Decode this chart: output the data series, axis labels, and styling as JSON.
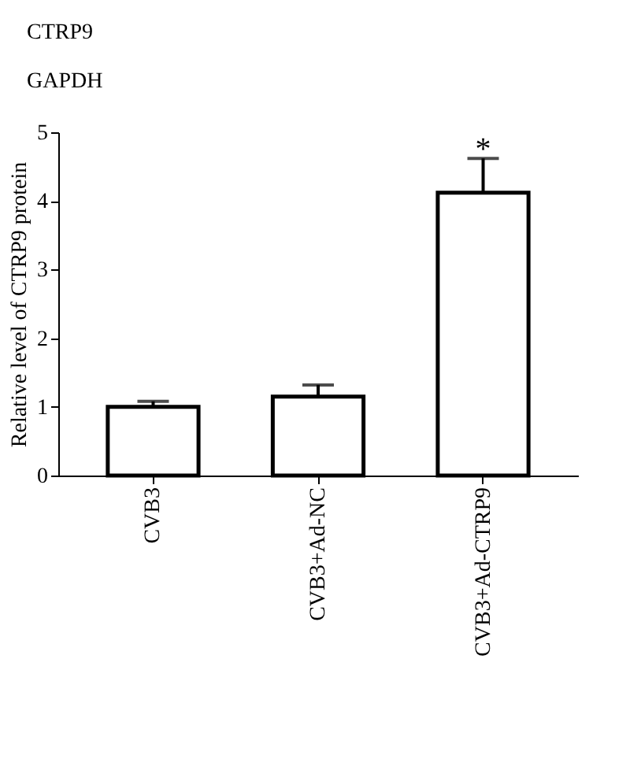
{
  "chart_data": {
    "type": "bar",
    "ylabel": "Relative level of CTRP9 protein",
    "categories": [
      "CVB3",
      "CVB3+Ad-NC",
      "CVB3+Ad-CTRP9"
    ],
    "values": [
      1.0,
      1.15,
      4.12
    ],
    "errors": [
      [
        1.0,
        1.08
      ],
      [
        1.15,
        1.32
      ],
      [
        4.12,
        4.62
      ]
    ],
    "color": "#ffffff",
    "ylim": [
      0,
      5
    ],
    "yticks": [
      0,
      1,
      2,
      3,
      4,
      5
    ],
    "grid": false,
    "annotations": [
      "CTRP9",
      "GAPDH",
      {
        "text": "*",
        "x": "CVB3+Ad-CTRP9",
        "y": 4.75
      }
    ]
  }
}
